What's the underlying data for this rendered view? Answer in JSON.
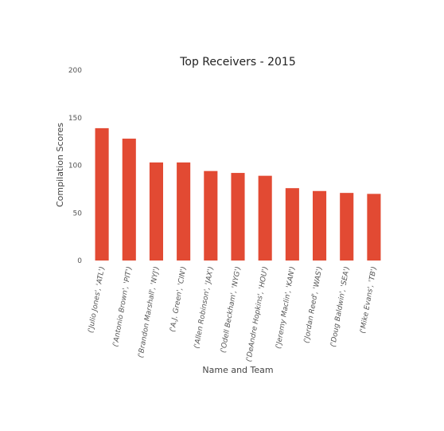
{
  "chart_data": {
    "type": "bar",
    "title": "Top Receivers - 2015",
    "xlabel": "Name and Team",
    "ylabel": "Compilation Scores",
    "ylim": [
      0,
      200
    ],
    "yticks": [
      0,
      50,
      100,
      150,
      200
    ],
    "grid": false,
    "bar_color": "#e24a33",
    "categories": [
      "('Julio Jones', 'ATL')",
      "('Antonio Brown', 'PIT')",
      "('Brandon Marshall', 'NYJ')",
      "('A.J. Green', 'CIN')",
      "('Allen Robinson', 'JAX')",
      "('Odell Beckham', 'NYG')",
      "('DeAndre Hopkins', 'HOU')",
      "('Jeremy Maclin', 'KAN')",
      "('Jordan Reed', 'WAS')",
      "('Doug Baldwin', 'SEA')",
      "('Mike Evans', 'TB')"
    ],
    "values": [
      139,
      128,
      103,
      103,
      94,
      92,
      89,
      76,
      73,
      71,
      70
    ]
  }
}
